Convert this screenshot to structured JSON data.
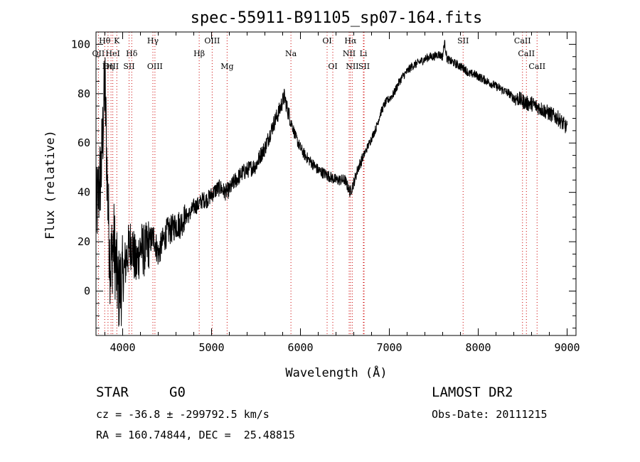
{
  "chart_data": {
    "type": "line",
    "title": "spec-55911-B91105_sp07-164.fits",
    "xlabel": "Wavelength (Å)",
    "ylabel": "Flux (relative)",
    "xlim": [
      3700,
      9100
    ],
    "ylim": [
      -18,
      105
    ],
    "x_ticks": [
      4000,
      5000,
      6000,
      7000,
      8000,
      9000
    ],
    "y_ticks": [
      0,
      20,
      40,
      60,
      80,
      100
    ],
    "series": [
      {
        "x": [
          3700,
          3760,
          3800,
          3830,
          3860,
          3900,
          3950,
          4000,
          4050,
          4100,
          4150,
          4200,
          4250,
          4300,
          4350,
          4400,
          4450,
          4500,
          4550,
          4600,
          4650,
          4700,
          4750,
          4800,
          4850,
          4900,
          4950,
          5000,
          5050,
          5100,
          5150,
          5200,
          5250,
          5300,
          5350,
          5400,
          5450,
          5500,
          5550,
          5600,
          5650,
          5700,
          5750,
          5800,
          5820,
          5850,
          5900,
          5950,
          6000,
          6050,
          6100,
          6150,
          6200,
          6250,
          6300,
          6350,
          6400,
          6450,
          6500,
          6560,
          6600,
          6650,
          6700,
          6750,
          6800,
          6850,
          6900,
          6950,
          7000,
          7050,
          7100,
          7150,
          7200,
          7250,
          7300,
          7350,
          7400,
          7450,
          7500,
          7550,
          7600,
          7620,
          7650,
          7700,
          7750,
          7800,
          7850,
          7900,
          7950,
          8000,
          8050,
          8100,
          8150,
          8200,
          8250,
          8300,
          8350,
          8400,
          8450,
          8500,
          8550,
          8600,
          8650,
          8700,
          8750,
          8800,
          8850,
          8900,
          8950,
          9000
        ],
        "y": [
          30,
          50,
          85,
          40,
          10,
          20,
          0,
          5,
          15,
          20,
          10,
          18,
          16,
          20,
          22,
          15,
          20,
          24,
          25,
          27,
          27,
          30,
          31,
          34,
          35,
          37,
          37,
          39,
          41,
          42,
          40,
          41,
          44,
          46,
          48,
          49,
          50,
          51,
          55,
          58,
          63,
          68,
          72,
          77,
          79,
          74,
          68,
          62,
          58,
          55,
          53,
          51,
          49,
          48,
          47,
          46,
          45,
          45,
          45,
          40,
          44,
          50,
          54,
          58,
          62,
          66,
          72,
          76,
          78,
          80,
          84,
          87,
          89,
          91,
          92,
          93,
          94,
          95,
          95,
          96,
          95,
          101,
          94,
          93,
          92,
          91,
          90,
          88,
          88,
          87,
          86,
          85,
          84,
          83,
          82,
          81,
          80,
          78,
          78,
          77,
          76,
          76,
          75,
          74,
          73,
          72,
          71,
          70,
          68,
          66
        ]
      }
    ],
    "lines": [
      {
        "label": "Hθ",
        "x": 3798,
        "row": 0
      },
      {
        "label": "K",
        "x": 3934,
        "row": 0
      },
      {
        "label": "Hγ",
        "x": 4340,
        "row": 0
      },
      {
        "label": "OIII",
        "x": 5007,
        "row": 0
      },
      {
        "label": "OI",
        "x": 6300,
        "row": 0
      },
      {
        "label": "Hα",
        "x": 6563,
        "row": 0
      },
      {
        "label": "SII",
        "x": 7830,
        "row": 0
      },
      {
        "label": "CaII",
        "x": 8498,
        "row": 0
      },
      {
        "label": "OII",
        "x": 3727,
        "row": 1
      },
      {
        "label": "HeI",
        "x": 3889,
        "row": 1
      },
      {
        "label": "Hδ",
        "x": 4102,
        "row": 1
      },
      {
        "label": "Hβ",
        "x": 4861,
        "row": 1
      },
      {
        "label": "Na",
        "x": 5893,
        "row": 1
      },
      {
        "label": "NII",
        "x": 6548,
        "row": 1
      },
      {
        "label": "Li",
        "x": 6708,
        "row": 1
      },
      {
        "label": "CaII",
        "x": 8542,
        "row": 1
      },
      {
        "label": "OIII",
        "x": 3869,
        "row": 2
      },
      {
        "label": "Hη",
        "x": 3835,
        "row": 2
      },
      {
        "label": "SII",
        "x": 4072,
        "row": 2
      },
      {
        "label": "OIII",
        "x": 4363,
        "row": 2
      },
      {
        "label": "Mg",
        "x": 5175,
        "row": 2
      },
      {
        "label": "OI",
        "x": 6364,
        "row": 2
      },
      {
        "label": "NII",
        "x": 6583,
        "row": 2
      },
      {
        "label": "SII",
        "x": 6716,
        "row": 2
      },
      {
        "label": "CaII",
        "x": 8662,
        "row": 2
      }
    ],
    "line_color": "#cc0000",
    "data_color": "#000000"
  },
  "info": {
    "class": "STAR",
    "subclass": "G0",
    "survey": "LAMOST DR2",
    "cz": "cz = -36.8 ± -299792.5 km/s",
    "obs_date": "Obs-Date: 20111215",
    "radec": "RA = 160.74844, DEC =  25.48815"
  }
}
